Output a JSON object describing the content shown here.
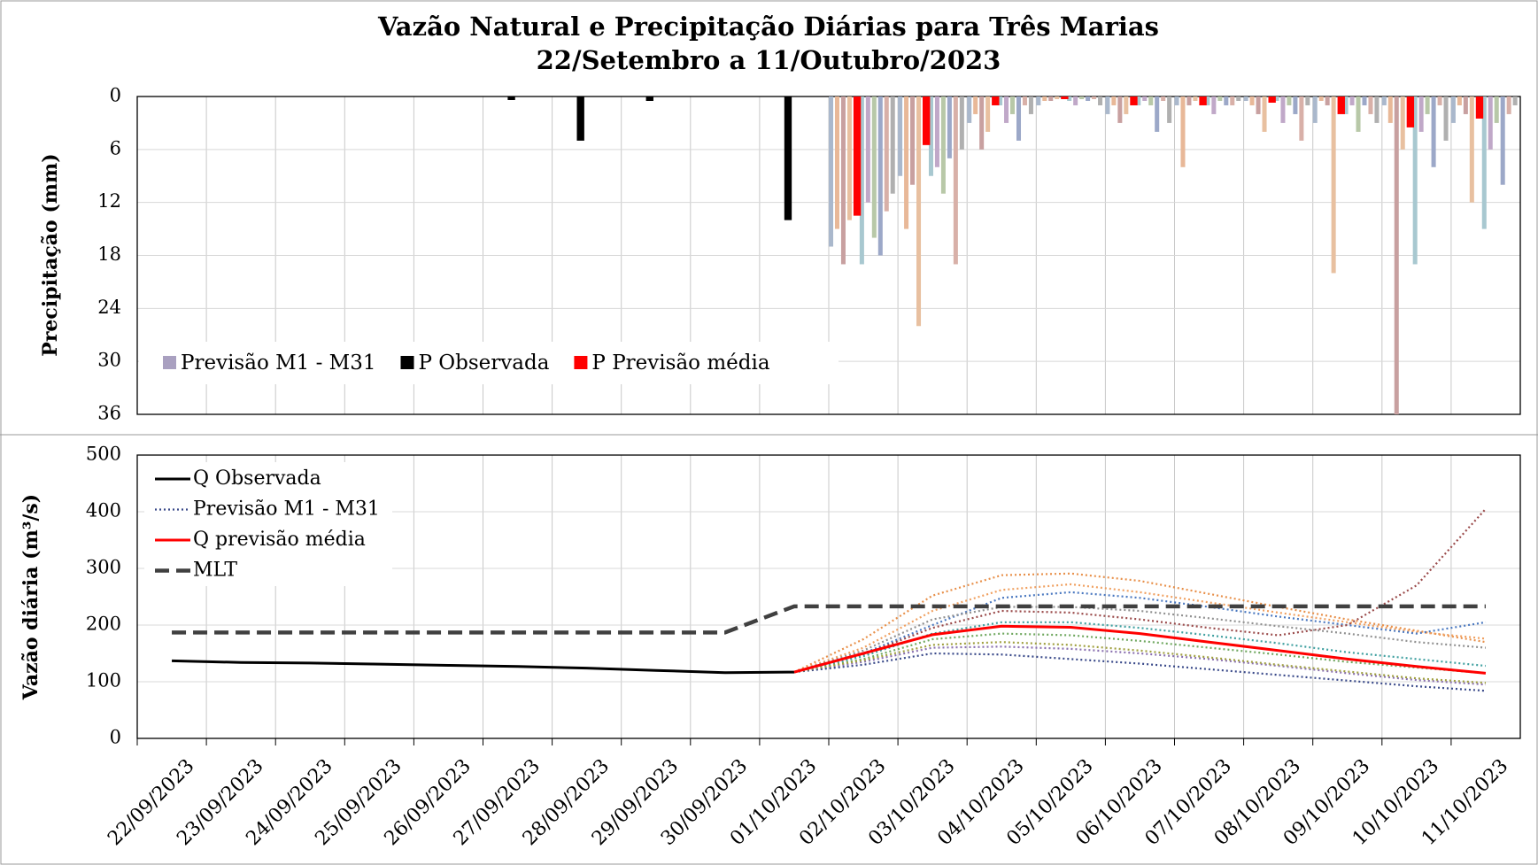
{
  "chart_data": [
    {
      "type": "bar",
      "title": "Vazão Natural e Precipitação Diárias para Três Marias",
      "subtitle": "22/Setembro a 11/Outubro/2023",
      "ylabel": "Precipitação (mm)",
      "ylim": [
        0,
        36
      ],
      "y_inverted": true,
      "yticks": [
        0,
        6,
        12,
        18,
        24,
        30,
        36
      ],
      "grid": true,
      "legend": "lower left",
      "series": [
        {
          "name": "Previsão M1 - M31",
          "color": "#a9a0c0",
          "members": [
            {
              "color": "#aab8cc",
              "values": [
                null,
                null,
                null,
                null,
                null,
                null,
                null,
                null,
                null,
                null,
                17,
                9,
                3,
                1,
                2,
                1,
                0.5,
                3,
                1,
                3
              ]
            },
            {
              "color": "#e8b898",
              "values": [
                null,
                null,
                null,
                null,
                null,
                null,
                null,
                null,
                null,
                null,
                15,
                15,
                2,
                0.5,
                1,
                8,
                1,
                0.5,
                3,
                1
              ]
            },
            {
              "color": "#c8a0a0",
              "values": [
                null,
                null,
                null,
                null,
                null,
                null,
                null,
                null,
                null,
                null,
                19,
                10,
                6,
                0.5,
                3,
                1,
                2,
                1,
                36,
                2
              ]
            },
            {
              "color": "#e8c0a0",
              "values": [
                null,
                null,
                null,
                null,
                null,
                null,
                null,
                null,
                null,
                null,
                14,
                26,
                4,
                0.3,
                2,
                0.5,
                4,
                20,
                6,
                12
              ]
            },
            {
              "color": "#a8c8d0",
              "values": [
                null,
                null,
                null,
                null,
                null,
                null,
                null,
                null,
                null,
                null,
                19,
                9,
                1,
                0.5,
                1,
                1,
                0.5,
                2,
                19,
                15
              ]
            },
            {
              "color": "#c0a8c8",
              "values": [
                null,
                null,
                null,
                null,
                null,
                null,
                null,
                null,
                null,
                null,
                12,
                8,
                3,
                1,
                0.5,
                2,
                3,
                1,
                4,
                6
              ]
            },
            {
              "color": "#b8c8a8",
              "values": [
                null,
                null,
                null,
                null,
                null,
                null,
                null,
                null,
                null,
                null,
                16,
                11,
                2,
                0.3,
                1,
                0.5,
                1,
                4,
                2,
                3
              ]
            },
            {
              "color": "#9ca8c8",
              "values": [
                null,
                null,
                null,
                null,
                null,
                null,
                null,
                null,
                null,
                null,
                18,
                7,
                5,
                0.5,
                4,
                1,
                2,
                1,
                8,
                10
              ]
            },
            {
              "color": "#d8b0a8",
              "values": [
                null,
                null,
                null,
                null,
                null,
                null,
                null,
                null,
                null,
                null,
                13,
                19,
                1,
                0.3,
                0.5,
                1,
                5,
                2,
                1,
                2
              ]
            },
            {
              "color": "#b0b0b0",
              "values": [
                null,
                null,
                null,
                null,
                null,
                null,
                null,
                null,
                null,
                null,
                11,
                6,
                2,
                1,
                3,
                0.5,
                1,
                3,
                5,
                1
              ]
            }
          ]
        },
        {
          "name": "P Observada",
          "color": "#000000",
          "values": [
            null,
            null,
            null,
            null,
            null,
            0.4,
            5,
            0.5,
            null,
            14,
            null,
            null,
            null,
            null,
            null,
            null,
            null,
            null,
            null,
            null
          ]
        },
        {
          "name": "P Previsão média",
          "color": "#ff0000",
          "values": [
            null,
            null,
            null,
            null,
            null,
            null,
            null,
            null,
            null,
            null,
            13.5,
            5.5,
            1,
            0.3,
            1,
            1,
            0.7,
            2,
            3.5,
            2.5
          ]
        }
      ]
    },
    {
      "type": "line",
      "ylabel": "Vazão diária (m³/s)",
      "categories": [
        "22/09/2023",
        "23/09/2023",
        "24/09/2023",
        "25/09/2023",
        "26/09/2023",
        "27/09/2023",
        "28/09/2023",
        "29/09/2023",
        "30/09/2023",
        "01/10/2023",
        "02/10/2023",
        "03/10/2023",
        "04/10/2023",
        "05/10/2023",
        "06/10/2023",
        "07/10/2023",
        "08/10/2023",
        "09/10/2023",
        "10/10/2023",
        "11/10/2023"
      ],
      "ylim": [
        0,
        500
      ],
      "yticks": [
        0,
        100,
        200,
        300,
        400,
        500
      ],
      "grid": true,
      "legend": "upper left",
      "series": [
        {
          "name": "Q Observada",
          "color": "#000000",
          "style": "solid",
          "values": [
            137,
            134,
            133,
            131,
            129,
            127,
            124,
            120,
            116,
            117,
            null,
            null,
            null,
            null,
            null,
            null,
            null,
            null,
            null,
            null
          ]
        },
        {
          "name": "Previsão M1 - M31",
          "color": "#3a4a8a",
          "style": "dotted",
          "members": [
            {
              "color": "#e8904a",
              "values": [
                null,
                null,
                null,
                null,
                null,
                null,
                null,
                null,
                null,
                117,
                175,
                252,
                288,
                291,
                278,
                255,
                232,
                210,
                190,
                170
              ]
            },
            {
              "color": "#f0a060",
              "values": [
                null,
                null,
                null,
                null,
                null,
                null,
                null,
                null,
                null,
                117,
                160,
                225,
                262,
                272,
                258,
                240,
                222,
                205,
                188,
                176
              ]
            },
            {
              "color": "#4a78c0",
              "values": [
                null,
                null,
                null,
                null,
                null,
                null,
                null,
                null,
                null,
                117,
                150,
                200,
                248,
                258,
                248,
                232,
                215,
                200,
                185,
                205
              ]
            },
            {
              "color": "#9a4a4a",
              "values": [
                null,
                null,
                null,
                null,
                null,
                null,
                null,
                null,
                null,
                117,
                148,
                195,
                225,
                222,
                210,
                195,
                182,
                200,
                270,
                405
              ]
            },
            {
              "color": "#70a860",
              "values": [
                null,
                null,
                null,
                null,
                null,
                null,
                null,
                null,
                null,
                117,
                140,
                175,
                185,
                182,
                172,
                160,
                148,
                135,
                125,
                115
              ]
            },
            {
              "color": "#8a70b0",
              "values": [
                null,
                null,
                null,
                null,
                null,
                null,
                null,
                null,
                null,
                117,
                135,
                160,
                162,
                158,
                150,
                140,
                128,
                115,
                103,
                95
              ]
            },
            {
              "color": "#3a4a8a",
              "values": [
                null,
                null,
                null,
                null,
                null,
                null,
                null,
                null,
                null,
                117,
                130,
                150,
                148,
                140,
                132,
                122,
                112,
                102,
                92,
                84
              ]
            },
            {
              "color": "#a0a040",
              "values": [
                null,
                null,
                null,
                null,
                null,
                null,
                null,
                null,
                null,
                117,
                138,
                165,
                170,
                165,
                155,
                143,
                130,
                118,
                106,
                98
              ]
            },
            {
              "color": "#909090",
              "values": [
                null,
                null,
                null,
                null,
                null,
                null,
                null,
                null,
                null,
                117,
                155,
                210,
                232,
                232,
                225,
                212,
                198,
                185,
                170,
                160
              ]
            },
            {
              "color": "#40a0a0",
              "values": [
                null,
                null,
                null,
                null,
                null,
                null,
                null,
                null,
                null,
                117,
                145,
                185,
                205,
                205,
                195,
                182,
                168,
                152,
                140,
                128
              ]
            }
          ]
        },
        {
          "name": "Q previsão média",
          "color": "#ff0000",
          "style": "solid",
          "values": [
            null,
            null,
            null,
            null,
            null,
            null,
            null,
            null,
            null,
            117,
            150,
            183,
            198,
            196,
            185,
            170,
            155,
            140,
            127,
            115
          ]
        },
        {
          "name": "MLT",
          "color": "#404040",
          "style": "dashed",
          "values": [
            187,
            187,
            187,
            187,
            187,
            187,
            187,
            187,
            187,
            233,
            233,
            233,
            233,
            233,
            233,
            233,
            233,
            233,
            233,
            233
          ]
        }
      ]
    }
  ]
}
